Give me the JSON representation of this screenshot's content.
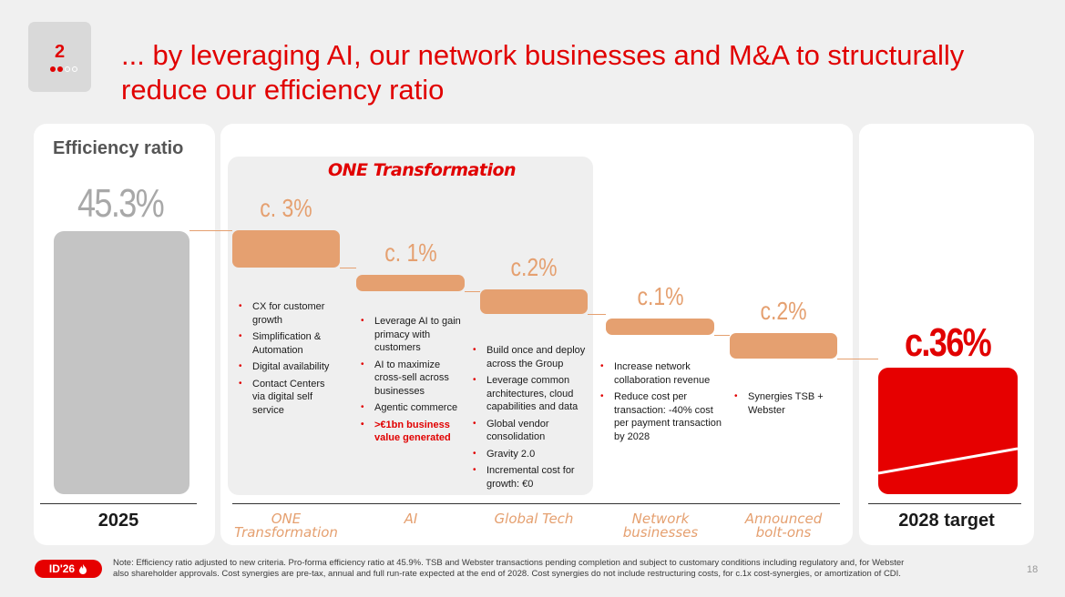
{
  "header": {
    "section_number": "2",
    "title": "... by leveraging AI, our network businesses and M&A to structurally reduce our efficiency ratio"
  },
  "colors": {
    "accent": "#e10000",
    "step": "#e5a070",
    "baseline_bar": "#c4c4c4",
    "target_bar": "#e60000"
  },
  "chart_data": {
    "type": "bar",
    "subtype": "waterfall",
    "title": "Efficiency ratio",
    "start": {
      "label": "2025",
      "value": 45.3,
      "display": "45.3%"
    },
    "end": {
      "label": "2028 target",
      "value": 36,
      "display": "c.36%"
    },
    "group_heading": "ONE Transformation",
    "steps": [
      {
        "category": "ONE Transformation",
        "value": -3,
        "display": "c. 3%",
        "bullets": [
          {
            "text": "CX for customer growth"
          },
          {
            "text": "Simplification & Automation"
          },
          {
            "text": "Digital availability"
          },
          {
            "text": "Contact Centers via digital self service"
          }
        ]
      },
      {
        "category": "AI",
        "value": -1,
        "display": "c. 1%",
        "bullets": [
          {
            "text": "Leverage AI to gain primacy with customers"
          },
          {
            "text": "AI to maximize cross-sell across businesses"
          },
          {
            "text": "Agentic commerce"
          },
          {
            "text": ">€1bn business value generated",
            "highlight": true
          }
        ]
      },
      {
        "category": "Global Tech",
        "value": -2,
        "display": "c.2%",
        "bullets": [
          {
            "text": "Build once and deploy across the Group"
          },
          {
            "text": "Leverage common architectures, cloud capabilities and data"
          },
          {
            "text": "Global vendor consolidation"
          },
          {
            "text": "Gravity 2.0"
          },
          {
            "text": "Incremental cost for growth: €0"
          }
        ]
      },
      {
        "category": "Network businesses",
        "value": -1,
        "display": "c.1%",
        "bullets": [
          {
            "text": "Increase network collaboration revenue"
          },
          {
            "text": "Reduce cost per transaction: -40% cost per payment transaction by 2028"
          }
        ]
      },
      {
        "category": "Announced bolt-ons",
        "value": -2,
        "display": "c.2%",
        "bullets": [
          {
            "text": "Synergies TSB + Webster"
          }
        ]
      }
    ]
  },
  "footer": {
    "logo_text": "ID'26",
    "note": "Note: Efficiency ratio adjusted to new criteria. Pro-forma efficiency ratio at 45.9%. TSB and Webster transactions pending completion and subject to customary conditions including regulatory and, for Webster also shareholder approvals. Cost synergies are pre-tax, annual and full run-rate expected at the end of 2028. Cost synergies do not include restructuring costs, for c.1x cost-synergies, or amortization of CDI.",
    "page_number": "18"
  }
}
